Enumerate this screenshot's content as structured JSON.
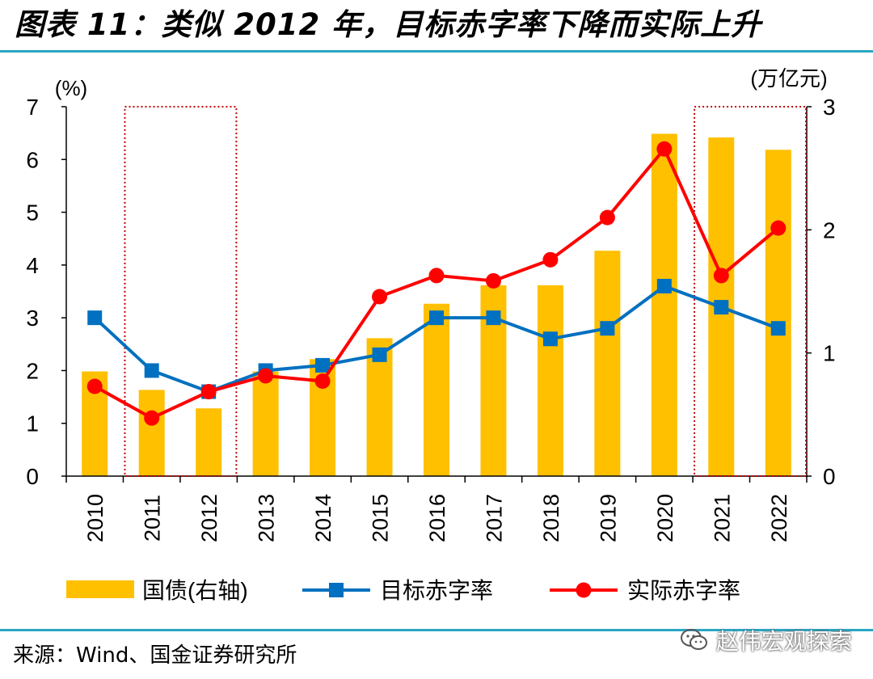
{
  "title": "图表 11：类似 2012 年，目标赤字率下降而实际上升",
  "source": "来源：Wind、国金证券研究所",
  "watermark": "赵伟宏观探索",
  "colors": {
    "bar": "#ffc000",
    "target": "#0070c0",
    "actual": "#ff0000",
    "highlight": "#c00000",
    "rule": "#2aa6c4"
  },
  "chart_data": {
    "type": "bar+line",
    "categories": [
      "2010",
      "2011",
      "2012",
      "2013",
      "2014",
      "2015",
      "2016",
      "2017",
      "2018",
      "2019",
      "2020",
      "2021",
      "2022"
    ],
    "left_axis": {
      "unit": "(%)",
      "range": [
        0,
        7
      ],
      "ticks": [
        0,
        1,
        2,
        3,
        4,
        5,
        6,
        7
      ]
    },
    "right_axis": {
      "unit": "(万亿元)",
      "range": [
        0,
        3
      ],
      "ticks": [
        0,
        1,
        2,
        3
      ]
    },
    "series": [
      {
        "name": "国债(右轴)",
        "type": "bar",
        "axis": "right",
        "values": [
          0.85,
          0.7,
          0.55,
          0.85,
          0.95,
          1.12,
          1.4,
          1.55,
          1.55,
          1.83,
          2.78,
          2.75,
          2.65
        ]
      },
      {
        "name": "目标赤字率",
        "type": "line",
        "marker": "square",
        "axis": "left",
        "values": [
          3.0,
          2.0,
          1.6,
          2.0,
          2.1,
          2.3,
          3.0,
          3.0,
          2.6,
          2.8,
          3.6,
          3.2,
          2.8
        ]
      },
      {
        "name": "实际赤字率",
        "type": "line",
        "marker": "circle",
        "axis": "left",
        "values": [
          1.7,
          1.1,
          1.6,
          1.9,
          1.8,
          3.4,
          3.8,
          3.7,
          4.1,
          4.9,
          6.2,
          3.8,
          4.7
        ]
      }
    ],
    "highlight_boxes": [
      [
        "2011",
        "2012"
      ],
      [
        "2021",
        "2022"
      ]
    ],
    "legend_position": "bottom",
    "grid": false
  }
}
